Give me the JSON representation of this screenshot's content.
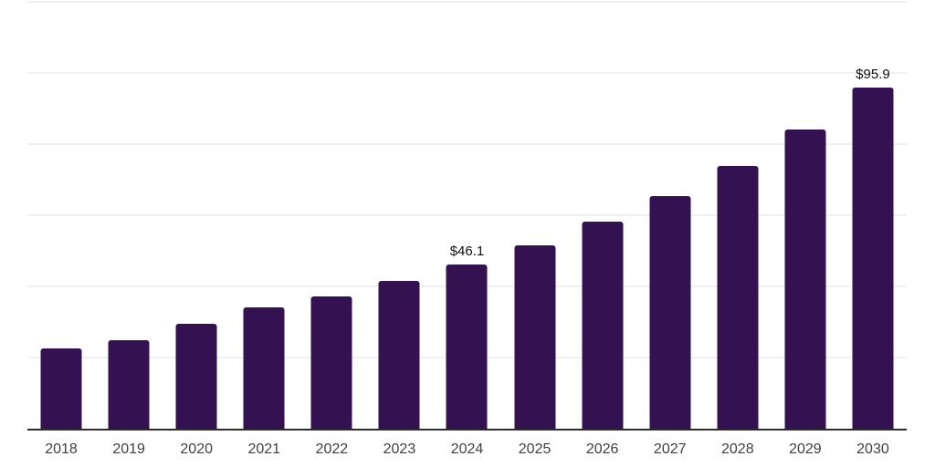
{
  "chart_data": {
    "type": "bar",
    "title": "",
    "xlabel": "",
    "ylabel": "",
    "categories": [
      "2018",
      "2019",
      "2020",
      "2021",
      "2022",
      "2023",
      "2024",
      "2025",
      "2026",
      "2027",
      "2028",
      "2029",
      "2030"
    ],
    "values": [
      22.5,
      24.9,
      29.6,
      34.0,
      37.3,
      41.6,
      46.1,
      51.5,
      58.1,
      65.3,
      73.8,
      84.1,
      95.9
    ],
    "data_labels": {
      "2024": "$46.1",
      "2030": "$95.9"
    },
    "value_prefix": "$",
    "ylim": [
      0,
      120
    ],
    "gridline_step": 20,
    "grid": "horizontal-only",
    "legend": "none",
    "y_tick_labels_visible": false,
    "colors": {
      "bar": "#341150",
      "axis_line": "#2c2c2c",
      "gridline": "#f0f0f0",
      "tick_label": "#3f3f3f",
      "data_label": "#0f0f0f",
      "background": "#ffffff"
    }
  }
}
